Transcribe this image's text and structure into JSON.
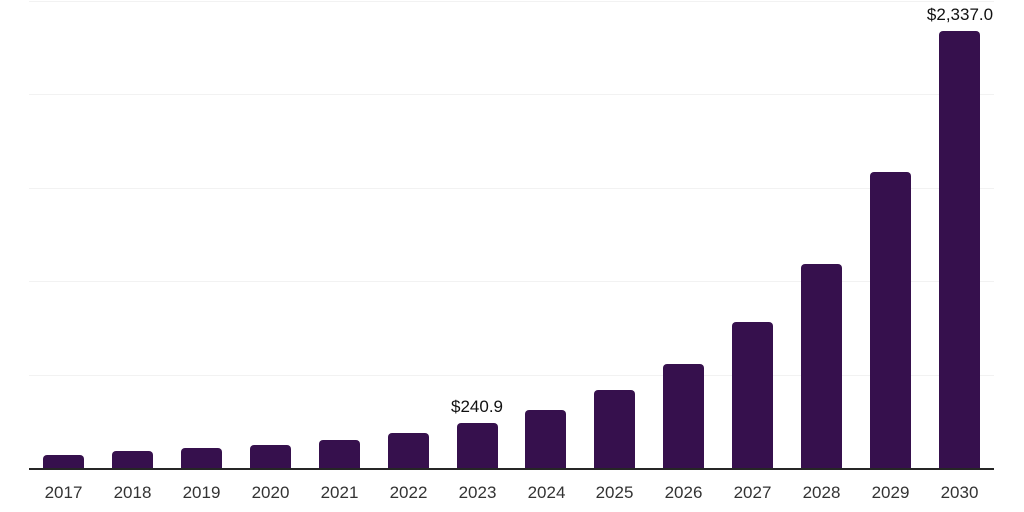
{
  "chart_data": {
    "type": "bar",
    "title": "",
    "xlabel": "",
    "ylabel": "",
    "categories": [
      "2017",
      "2018",
      "2019",
      "2020",
      "2021",
      "2022",
      "2023",
      "2024",
      "2025",
      "2026",
      "2027",
      "2028",
      "2029",
      "2030"
    ],
    "values": [
      72,
      93,
      109,
      125,
      150,
      187,
      240.9,
      311,
      417,
      559,
      780,
      1092,
      1583,
      2337.0
    ],
    "data_labels": [
      "",
      "",
      "",
      "",
      "",
      "",
      "$240.9",
      "",
      "",
      "",
      "",
      "",
      "",
      "$2,337.0"
    ],
    "ylim": [
      0,
      2500
    ],
    "grid": true,
    "gridline_values": [
      500,
      1000,
      1500,
      2000,
      2500
    ],
    "legend_position": "none"
  },
  "colors": {
    "bar": "#36104d",
    "axis": "#262626",
    "gridline": "#f2f2f2",
    "tick_label": "#333333",
    "data_label": "#111111",
    "background": "#ffffff"
  }
}
